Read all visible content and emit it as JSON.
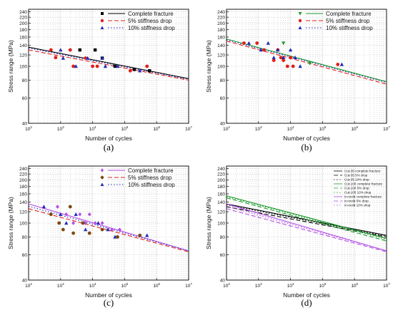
{
  "ylabel": "Stress range (MPa)",
  "xlabel": "Number of cycles",
  "colors": {
    "black": "#000000",
    "red": "#e0201a",
    "blue": "#1f2ab8",
    "green": "#1a9a2a",
    "purple": "#b24ee6",
    "brown": "#7a4a10"
  },
  "chart_data": [
    {
      "type": "scatter",
      "panel_label": "(a)",
      "xscale": "log",
      "yscale": "log",
      "xlim": [
        100,
        10000000
      ],
      "ylim": [
        40,
        250
      ],
      "yticks": [
        40,
        60,
        80,
        100,
        120,
        140,
        160,
        180,
        200,
        220,
        240
      ],
      "xticks": [
        "10^2",
        "10^3",
        "10^4",
        "10^5",
        "10^6",
        "10^7"
      ],
      "legend": [
        "Complete fracture",
        "5% stiffness drop",
        "10% stiffness drop"
      ],
      "legend_position": "top-right",
      "points": [
        {
          "series": 0,
          "marker": "square",
          "color": "black",
          "x": 4000,
          "y": 130
        },
        {
          "series": 0,
          "marker": "square",
          "color": "black",
          "x": 12000,
          "y": 130
        },
        {
          "series": 0,
          "marker": "square",
          "color": "black",
          "x": 20000,
          "y": 114
        },
        {
          "series": 0,
          "marker": "square",
          "color": "black",
          "x": 50000,
          "y": 100
        },
        {
          "series": 0,
          "marker": "square",
          "color": "black",
          "x": 200000,
          "y": 95
        },
        {
          "series": 0,
          "marker": "square",
          "color": "black",
          "x": 600000,
          "y": 93
        },
        {
          "series": 1,
          "marker": "circle",
          "color": "red",
          "x": 500,
          "y": 130
        },
        {
          "series": 1,
          "marker": "circle",
          "color": "red",
          "x": 700,
          "y": 115
        },
        {
          "series": 1,
          "marker": "circle",
          "color": "red",
          "x": 2000,
          "y": 130
        },
        {
          "series": 1,
          "marker": "circle",
          "color": "red",
          "x": 2500,
          "y": 100
        },
        {
          "series": 1,
          "marker": "circle",
          "color": "red",
          "x": 6000,
          "y": 114
        },
        {
          "series": 1,
          "marker": "circle",
          "color": "red",
          "x": 10000,
          "y": 100
        },
        {
          "series": 1,
          "marker": "circle",
          "color": "red",
          "x": 14000,
          "y": 100
        },
        {
          "series": 1,
          "marker": "circle",
          "color": "red",
          "x": 150000,
          "y": 93
        },
        {
          "series": 1,
          "marker": "circle",
          "color": "red",
          "x": 500000,
          "y": 100
        },
        {
          "series": 2,
          "marker": "triangle",
          "color": "blue",
          "x": 1000,
          "y": 130
        },
        {
          "series": 2,
          "marker": "triangle",
          "color": "blue",
          "x": 1200,
          "y": 114
        },
        {
          "series": 2,
          "marker": "triangle",
          "color": "blue",
          "x": 3000,
          "y": 100
        },
        {
          "series": 2,
          "marker": "triangle",
          "color": "blue",
          "x": 7000,
          "y": 114
        },
        {
          "series": 2,
          "marker": "triangle",
          "color": "blue",
          "x": 20000,
          "y": 114
        },
        {
          "series": 2,
          "marker": "triangle",
          "color": "blue",
          "x": 25000,
          "y": 100
        },
        {
          "series": 2,
          "marker": "triangle",
          "color": "blue",
          "x": 60000,
          "y": 100
        },
        {
          "series": 2,
          "marker": "triangle",
          "color": "blue",
          "x": 300000,
          "y": 93
        }
      ],
      "lines": [
        {
          "series": 0,
          "style": "solid",
          "color": "black",
          "x": [
            100,
            10000000
          ],
          "y": [
            136,
            82
          ]
        },
        {
          "series": 1,
          "style": "dashed",
          "color": "red",
          "x": [
            100,
            10000000
          ],
          "y": [
            130,
            80
          ]
        },
        {
          "series": 2,
          "style": "dotted",
          "color": "blue",
          "x": [
            100,
            10000000
          ],
          "y": [
            134,
            81
          ]
        }
      ]
    },
    {
      "type": "scatter",
      "panel_label": "(b)",
      "xscale": "log",
      "yscale": "log",
      "xlim": [
        100,
        10000000
      ],
      "ylim": [
        40,
        250
      ],
      "yticks": [
        40,
        60,
        80,
        100,
        120,
        140,
        160,
        180,
        200,
        220,
        240
      ],
      "xticks": [
        "10^2",
        "10^3",
        "10^4",
        "10^5",
        "10^6",
        "10^7"
      ],
      "legend": [
        "Complete fracture",
        "5% stiffness drop",
        "10% stiffness drop"
      ],
      "legend_position": "top-right",
      "points": [
        {
          "series": 0,
          "marker": "triangle-down",
          "color": "green",
          "x": 6000,
          "y": 145
        },
        {
          "series": 0,
          "marker": "triangle-down",
          "color": "green",
          "x": 40000,
          "y": 105
        },
        {
          "series": 1,
          "marker": "circle",
          "color": "red",
          "x": 350,
          "y": 145
        },
        {
          "series": 1,
          "marker": "circle",
          "color": "red",
          "x": 900,
          "y": 145
        },
        {
          "series": 1,
          "marker": "circle",
          "color": "red",
          "x": 1500,
          "y": 130
        },
        {
          "series": 1,
          "marker": "circle",
          "color": "red",
          "x": 3000,
          "y": 110
        },
        {
          "series": 1,
          "marker": "circle",
          "color": "red",
          "x": 4000,
          "y": 130
        },
        {
          "series": 1,
          "marker": "circle",
          "color": "red",
          "x": 5000,
          "y": 115
        },
        {
          "series": 1,
          "marker": "circle",
          "color": "red",
          "x": 6000,
          "y": 110
        },
        {
          "series": 1,
          "marker": "circle",
          "color": "red",
          "x": 8000,
          "y": 100
        },
        {
          "series": 1,
          "marker": "circle",
          "color": "red",
          "x": 10000,
          "y": 115
        },
        {
          "series": 1,
          "marker": "circle",
          "color": "red",
          "x": 12000,
          "y": 100
        },
        {
          "series": 1,
          "marker": "circle",
          "color": "red",
          "x": 300000,
          "y": 103
        },
        {
          "series": 2,
          "marker": "triangle",
          "color": "blue",
          "x": 500,
          "y": 145
        },
        {
          "series": 2,
          "marker": "triangle",
          "color": "blue",
          "x": 1200,
          "y": 130
        },
        {
          "series": 2,
          "marker": "triangle",
          "color": "blue",
          "x": 2000,
          "y": 145
        },
        {
          "series": 2,
          "marker": "triangle",
          "color": "blue",
          "x": 3000,
          "y": 115
        },
        {
          "series": 2,
          "marker": "triangle",
          "color": "blue",
          "x": 4000,
          "y": 130
        },
        {
          "series": 2,
          "marker": "triangle",
          "color": "blue",
          "x": 6000,
          "y": 115
        },
        {
          "series": 2,
          "marker": "triangle",
          "color": "blue",
          "x": 10000,
          "y": 130
        },
        {
          "series": 2,
          "marker": "triangle",
          "color": "blue",
          "x": 14000,
          "y": 115
        },
        {
          "series": 2,
          "marker": "triangle",
          "color": "blue",
          "x": 20000,
          "y": 100
        },
        {
          "series": 2,
          "marker": "triangle",
          "color": "blue",
          "x": 400000,
          "y": 103
        }
      ],
      "lines": [
        {
          "series": 0,
          "style": "solid",
          "color": "green",
          "x": [
            100,
            10000000
          ],
          "y": [
            155,
            78
          ]
        },
        {
          "series": 1,
          "style": "dashed",
          "color": "red",
          "x": [
            100,
            10000000
          ],
          "y": [
            150,
            75
          ]
        },
        {
          "series": 2,
          "style": "dotted",
          "color": "blue",
          "x": [
            100,
            10000000
          ],
          "y": [
            153,
            77
          ]
        }
      ]
    },
    {
      "type": "scatter",
      "panel_label": "(c)",
      "xscale": "log",
      "yscale": "log",
      "xlim": [
        100,
        10000000
      ],
      "ylim": [
        40,
        250
      ],
      "yticks": [
        40,
        60,
        80,
        100,
        120,
        140,
        160,
        180,
        200,
        220,
        240
      ],
      "xticks": [
        "10^2",
        "10^3",
        "10^4",
        "10^5",
        "10^6",
        "10^7"
      ],
      "legend": [
        "Complete fracture",
        "5% stiffness drop",
        "10% stiffness drop"
      ],
      "legend_position": "top-right",
      "points": [
        {
          "series": 0,
          "marker": "diamond",
          "color": "purple",
          "x": 800,
          "y": 130
        },
        {
          "series": 0,
          "marker": "diamond",
          "color": "purple",
          "x": 1500,
          "y": 115
        },
        {
          "series": 0,
          "marker": "diamond",
          "color": "purple",
          "x": 2500,
          "y": 100
        },
        {
          "series": 0,
          "marker": "diamond",
          "color": "purple",
          "x": 4000,
          "y": 115
        },
        {
          "series": 0,
          "marker": "diamond",
          "color": "purple",
          "x": 6000,
          "y": 100
        },
        {
          "series": 0,
          "marker": "diamond",
          "color": "purple",
          "x": 8000,
          "y": 115
        },
        {
          "series": 0,
          "marker": "diamond",
          "color": "purple",
          "x": 12000,
          "y": 100
        },
        {
          "series": 0,
          "marker": "diamond",
          "color": "purple",
          "x": 20000,
          "y": 100
        },
        {
          "series": 0,
          "marker": "diamond",
          "color": "purple",
          "x": 40000,
          "y": 90
        },
        {
          "series": 0,
          "marker": "diamond",
          "color": "purple",
          "x": 70000,
          "y": 90
        },
        {
          "series": 1,
          "marker": "circle",
          "color": "brown",
          "x": 500,
          "y": 115
        },
        {
          "series": 1,
          "marker": "circle",
          "color": "brown",
          "x": 900,
          "y": 100
        },
        {
          "series": 1,
          "marker": "circle",
          "color": "brown",
          "x": 1200,
          "y": 90
        },
        {
          "series": 1,
          "marker": "circle",
          "color": "brown",
          "x": 2000,
          "y": 130
        },
        {
          "series": 1,
          "marker": "circle",
          "color": "brown",
          "x": 2500,
          "y": 85
        },
        {
          "series": 1,
          "marker": "circle",
          "color": "brown",
          "x": 5000,
          "y": 100
        },
        {
          "series": 1,
          "marker": "circle",
          "color": "brown",
          "x": 8000,
          "y": 85
        },
        {
          "series": 1,
          "marker": "circle",
          "color": "brown",
          "x": 20000,
          "y": 90
        },
        {
          "series": 1,
          "marker": "circle",
          "color": "brown",
          "x": 60000,
          "y": 80
        },
        {
          "series": 1,
          "marker": "circle",
          "color": "brown",
          "x": 300000,
          "y": 82
        },
        {
          "series": 2,
          "marker": "triangle",
          "color": "blue",
          "x": 300,
          "y": 130
        },
        {
          "series": 2,
          "marker": "triangle",
          "color": "blue",
          "x": 1000,
          "y": 115
        },
        {
          "series": 2,
          "marker": "triangle",
          "color": "blue",
          "x": 1500,
          "y": 100
        },
        {
          "series": 2,
          "marker": "triangle",
          "color": "blue",
          "x": 3000,
          "y": 115
        },
        {
          "series": 2,
          "marker": "triangle",
          "color": "blue",
          "x": 6000,
          "y": 90
        },
        {
          "series": 2,
          "marker": "triangle",
          "color": "blue",
          "x": 15000,
          "y": 100
        },
        {
          "series": 2,
          "marker": "triangle",
          "color": "blue",
          "x": 30000,
          "y": 90
        },
        {
          "series": 2,
          "marker": "triangle",
          "color": "blue",
          "x": 50000,
          "y": 80
        },
        {
          "series": 2,
          "marker": "triangle",
          "color": "blue",
          "x": 500000,
          "y": 82
        }
      ],
      "lines": [
        {
          "series": 0,
          "style": "solid",
          "color": "purple",
          "x": [
            100,
            10000000
          ],
          "y": [
            136,
            64
          ]
        },
        {
          "series": 1,
          "style": "dashed",
          "color": "red",
          "x": [
            100,
            10000000
          ],
          "y": [
            126,
            63
          ]
        },
        {
          "series": 2,
          "style": "dotted",
          "color": "blue",
          "x": [
            100,
            10000000
          ],
          "y": [
            131,
            64
          ]
        }
      ]
    },
    {
      "type": "line",
      "panel_label": "(d)",
      "xscale": "log",
      "yscale": "log",
      "xlim": [
        100,
        10000000
      ],
      "ylim": [
        40,
        250
      ],
      "yticks": [
        40,
        60,
        80,
        100,
        120,
        140,
        160,
        180,
        200,
        220,
        240
      ],
      "xticks": [
        "10^2",
        "10^3",
        "10^4",
        "10^5",
        "10^6",
        "10^7"
      ],
      "legend": [
        "Cut-35 complete fracture",
        "Cut-35 5% drop",
        "Cut-35 10% drop",
        "Cut-100 complete fracture",
        "Cut-100 5% drop",
        "Cut-100 10% drop",
        "In-mold complete fracture",
        "In-mold 5% drop",
        "In-mold 10% drop"
      ],
      "legend_position": "top-right",
      "points": [],
      "lines": [
        {
          "series": 0,
          "style": "solid",
          "color": "black",
          "x": [
            100,
            10000000
          ],
          "y": [
            136,
            82
          ]
        },
        {
          "series": 1,
          "style": "dashed",
          "color": "black",
          "x": [
            100,
            10000000
          ],
          "y": [
            130,
            80
          ]
        },
        {
          "series": 2,
          "style": "dotted",
          "color": "black",
          "x": [
            100,
            10000000
          ],
          "y": [
            134,
            81
          ]
        },
        {
          "series": 3,
          "style": "solid",
          "color": "green",
          "x": [
            100,
            10000000
          ],
          "y": [
            155,
            78
          ]
        },
        {
          "series": 4,
          "style": "dashed",
          "color": "green",
          "x": [
            100,
            10000000
          ],
          "y": [
            150,
            75
          ]
        },
        {
          "series": 5,
          "style": "dotted",
          "color": "green",
          "x": [
            100,
            10000000
          ],
          "y": [
            153,
            77
          ]
        },
        {
          "series": 6,
          "style": "solid",
          "color": "purple",
          "x": [
            100,
            10000000
          ],
          "y": [
            136,
            64
          ]
        },
        {
          "series": 7,
          "style": "dashed",
          "color": "purple",
          "x": [
            100,
            10000000
          ],
          "y": [
            126,
            63
          ]
        },
        {
          "series": 8,
          "style": "dotted",
          "color": "purple",
          "x": [
            100,
            10000000
          ],
          "y": [
            131,
            64
          ]
        }
      ]
    }
  ]
}
